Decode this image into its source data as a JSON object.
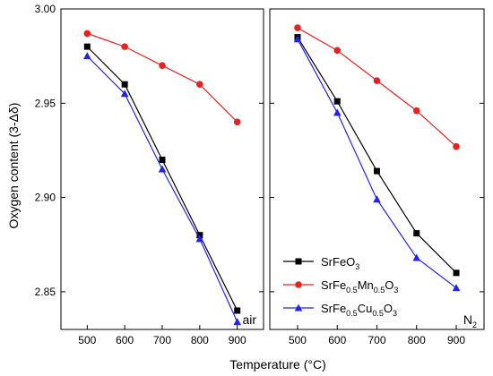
{
  "chart_data": {
    "type": "line",
    "ylabel": "Oxygen content (3-Δδ)",
    "xlabel": "Temperature (°C)",
    "ylim": [
      2.83,
      3.0
    ],
    "yticks": [
      "2.85",
      "2.90",
      "2.95",
      "3.00"
    ],
    "yticks_values": [
      2.85,
      2.9,
      2.95,
      3.0
    ],
    "xticks": [
      500,
      600,
      700,
      800,
      900
    ],
    "xlim": [
      430,
      970
    ],
    "legend_position": "bottom-right",
    "legend": [
      {
        "base": "SrFeO",
        "sub": "3"
      },
      {
        "base": "SrFe",
        "sub": "0.5",
        "mid": "Mn",
        "sub2": "0.5",
        "mid2": "O",
        "sub3": "3"
      },
      {
        "base": "SrFe",
        "sub": "0.5",
        "mid": "Cu",
        "sub2": "0.5",
        "mid2": "O",
        "sub3": "3"
      }
    ],
    "series_styles": [
      {
        "color": "#000000",
        "marker": "square"
      },
      {
        "color": "#e8231f",
        "marker": "circle"
      },
      {
        "color": "#2323e8",
        "marker": "triangle"
      }
    ],
    "panels": [
      {
        "label": "air",
        "x": [
          500,
          600,
          700,
          800,
          900
        ],
        "series": [
          {
            "values": [
              2.98,
              2.96,
              2.92,
              2.88,
              2.84
            ]
          },
          {
            "values": [
              2.987,
              2.98,
              2.97,
              2.96,
              2.94
            ]
          },
          {
            "values": [
              2.975,
              2.955,
              2.915,
              2.878,
              2.834
            ]
          }
        ]
      },
      {
        "label": "N",
        "label_sub": "2",
        "x": [
          500,
          600,
          700,
          800,
          900
        ],
        "series": [
          {
            "values": [
              2.985,
              2.951,
              2.914,
              2.881,
              2.86
            ]
          },
          {
            "values": [
              2.99,
              2.978,
              2.962,
              2.946,
              2.927
            ]
          },
          {
            "values": [
              2.984,
              2.945,
              2.899,
              2.868,
              2.852
            ]
          }
        ]
      }
    ]
  }
}
